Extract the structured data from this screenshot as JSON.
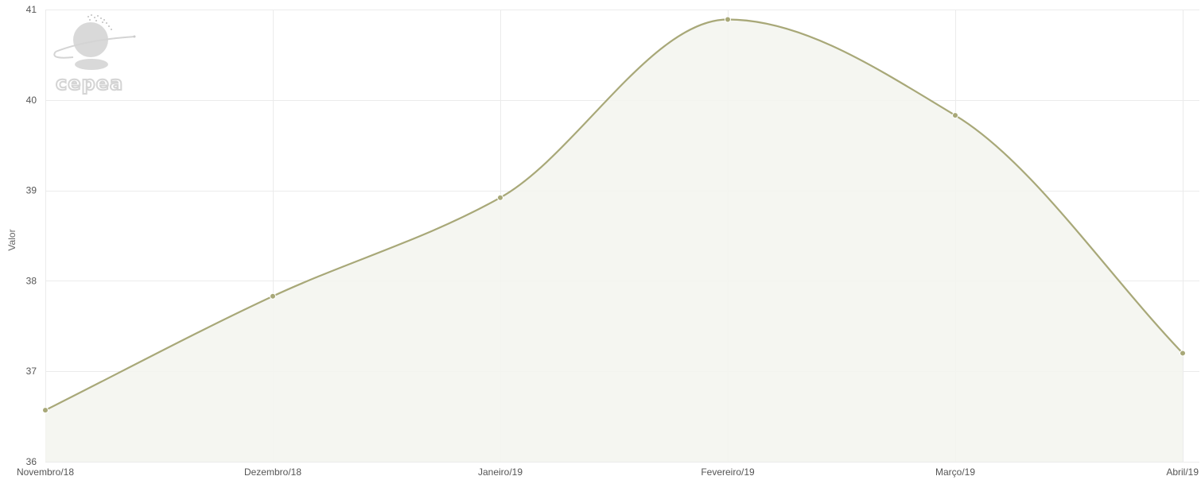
{
  "chart_data": {
    "type": "area",
    "categories": [
      "Novembro/18",
      "Dezembro/18",
      "Janeiro/19",
      "Fevereiro/19",
      "Março/19",
      "Abril/19"
    ],
    "series": [
      {
        "values": [
          36.57,
          37.83,
          38.92,
          40.89,
          39.83,
          37.2
        ]
      }
    ],
    "ylabel": "Valor",
    "ylim": [
      36,
      41
    ],
    "yticks": [
      36,
      37,
      38,
      39,
      40,
      41
    ],
    "grid": true,
    "legend": "none",
    "line_color": "#a8a878",
    "fill_color": "#f4f5ef"
  },
  "logo": {
    "text": "cepea"
  }
}
